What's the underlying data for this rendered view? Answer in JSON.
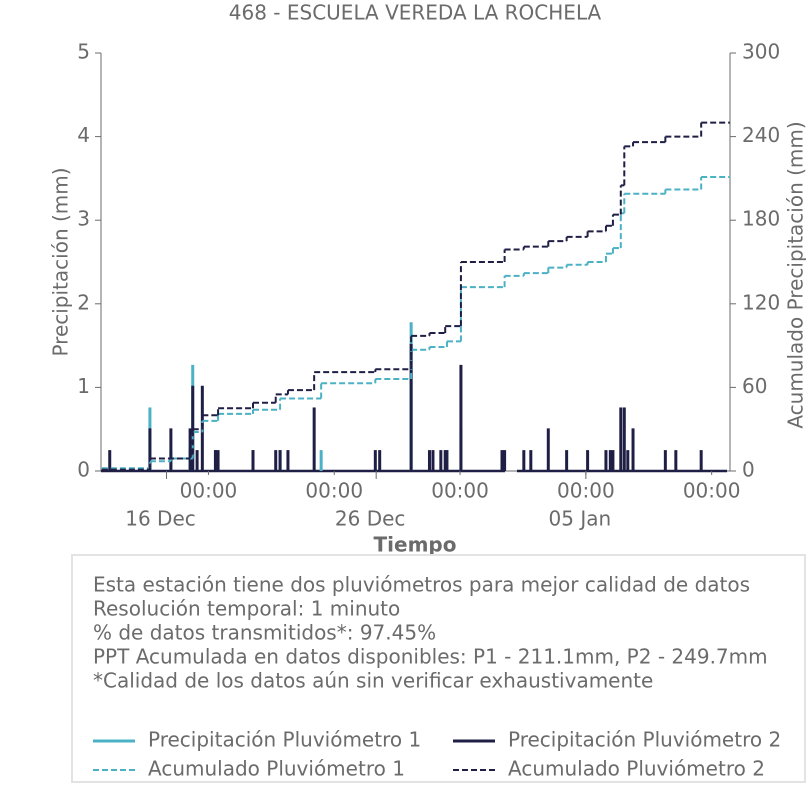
{
  "chart_data": {
    "type": "line",
    "title": "468 - ESCUELA VEREDA LA ROCHELA",
    "xlabel": "Tiempo",
    "ylabel": "Precipitación (mm)",
    "y2label": "Acumulado Precipitación (mm)",
    "xlim": [
      "12-12 21:00",
      "01-11 21:00"
    ],
    "xticks": [
      {
        "value": "12-18 00:00",
        "label": "00:00"
      },
      {
        "value": "12-24 00:00",
        "label": "00:00"
      },
      {
        "value": "12-30 00:00",
        "label": "00:00"
      },
      {
        "value": "01-05 00:00",
        "label": "00:00"
      },
      {
        "value": "01-11 00:00",
        "label": "00:00"
      }
    ],
    "xticks_major": [
      {
        "value": "12-16 00:00",
        "label": "16 Dec"
      },
      {
        "value": "12-26 00:00",
        "label": "26 Dec"
      },
      {
        "value": "01-05 00:00",
        "label": "05 Jan"
      }
    ],
    "ylim": [
      0,
      5
    ],
    "yticks": [
      0,
      1,
      2,
      3,
      4,
      5
    ],
    "y2lim": [
      0,
      300
    ],
    "y2ticks": [
      0,
      60,
      120,
      180,
      240,
      300
    ],
    "series": [
      {
        "name": "Precipitación Pluviómetro 1",
        "color": "#4bb1c4",
        "style": "solid",
        "x": [
          "12-15 05:00",
          "12-16 05:00",
          "12-17 03:00",
          "12-17 06:00",
          "12-18 08:00",
          "12-20 03:00",
          "12-21 10:00",
          "12-23 09:00",
          "12-27 16:00",
          "12-30 01:00"
        ],
        "values": [
          0.76,
          0.25,
          0.25,
          1.27,
          0.25,
          0.25,
          0.25,
          0.25,
          1.78,
          0.51
        ]
      },
      {
        "name": "Precipitación Pluviómetro 2",
        "color": "#1f1f46",
        "style": "solid",
        "x": [
          "12-13 07:00",
          "12-15 05:00",
          "12-16 05:00",
          "12-17 03:00",
          "12-17 06:00",
          "12-17 11:00",
          "12-17 17:00",
          "12-18 08:00",
          "12-18 11:00",
          "12-20 03:00",
          "12-21 05:00",
          "12-21 10:00",
          "12-21 19:00",
          "12-23 01:00",
          "12-25 23:00",
          "12-26 04:00",
          "12-27 16:00",
          "12-28 13:00",
          "12-28 17:00",
          "12-29 02:00",
          "12-29 07:00",
          "12-29 09:00",
          "12-30 01:00",
          "01-01 00:00",
          "01-01 03:00",
          "01-02 01:00",
          "01-02 09:00",
          "01-03 05:00",
          "01-04 02:00",
          "01-05 02:00",
          "01-05 23:00",
          "01-06 04:00",
          "01-06 07:00",
          "01-06 16:00",
          "01-06 20:00",
          "01-07 00:00",
          "01-07 06:00",
          "01-08 19:00",
          "01-09 07:00",
          "01-10 12:00"
        ],
        "values": [
          0.25,
          0.51,
          0.51,
          0.51,
          1.02,
          0.25,
          1.02,
          0.25,
          0.25,
          0.25,
          0.25,
          0.25,
          0.25,
          0.76,
          0.25,
          0.25,
          1.52,
          0.25,
          0.25,
          0.25,
          0.25,
          0.25,
          1.27,
          0.25,
          0.25,
          0.25,
          0.25,
          0.51,
          0.25,
          0.25,
          0.25,
          0.25,
          0.25,
          0.76,
          0.76,
          0.25,
          0.51,
          0.25,
          0.25,
          0.25
        ]
      },
      {
        "name": "Acumulado Pluviómetro 1",
        "color": "#4bb1c4",
        "style": "dashed",
        "axis": "y2",
        "x": [
          "12-12 22:00",
          "12-15 05:00",
          "12-16 05:00",
          "12-17 06:00",
          "12-17 17:00",
          "12-18 11:00",
          "12-20 03:00",
          "12-21 10:00",
          "12-23 09:00",
          "12-25 23:00",
          "12-27 16:00",
          "12-28 13:00",
          "12-29 09:00",
          "12-30 01:00",
          "01-01 03:00",
          "01-02 01:00",
          "01-03 05:00",
          "01-04 02:00",
          "01-05 02:00",
          "01-05 23:00",
          "01-06 07:00",
          "01-06 16:00",
          "01-06 20:00",
          "01-08 19:00",
          "01-10 12:00",
          "01-11 20:00"
        ],
        "values": [
          2,
          7,
          9,
          28,
          36,
          41,
          44,
          52,
          63,
          66,
          87,
          89,
          93,
          132,
          140,
          142,
          146,
          148,
          150,
          156,
          160,
          185,
          199,
          202,
          211,
          211
        ]
      },
      {
        "name": "Acumulado Pluviómetro 2",
        "color": "#1f1f46",
        "style": "dashed",
        "axis": "y2",
        "x": [
          "12-12 22:00",
          "12-15 05:00",
          "12-17 03:00",
          "12-17 06:00",
          "12-17 17:00",
          "12-18 11:00",
          "12-20 03:00",
          "12-21 05:00",
          "12-21 19:00",
          "12-23 01:00",
          "12-25 23:00",
          "12-27 16:00",
          "12-28 13:00",
          "12-29 07:00",
          "12-30 01:00",
          "01-01 03:00",
          "01-02 01:00",
          "01-03 05:00",
          "01-04 02:00",
          "01-05 02:00",
          "01-05 23:00",
          "01-06 07:00",
          "01-06 16:00",
          "01-06 20:00",
          "01-07 06:00",
          "01-08 19:00",
          "01-10 12:00",
          "01-11 20:00"
        ],
        "values": [
          1,
          9,
          12,
          30,
          40,
          45,
          49,
          55,
          58,
          71,
          73,
          97,
          99,
          104,
          150,
          159,
          161,
          165,
          168,
          172,
          176,
          184,
          205,
          233,
          236,
          240,
          250,
          250
        ]
      }
    ],
    "notes": [
      "Esta estación tiene dos pluviómetros para mejor calidad de datos",
      "Resolución temporal: 1 minuto",
      "% de datos transmitidos*: 97.45%",
      "PPT Acumulada en datos disponibles: P1 - 211.1mm, P2 - 249.7mm",
      "*Calidad de los datos aún sin verificar exhaustivamente"
    ]
  }
}
